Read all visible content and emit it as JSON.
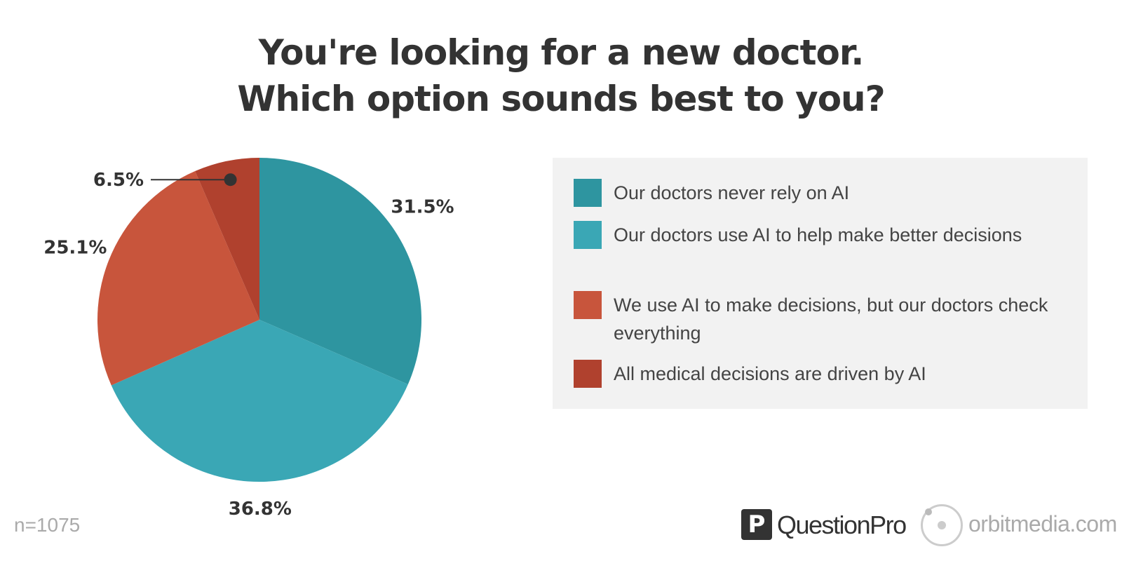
{
  "title": {
    "line1": "You're looking for a new doctor.",
    "line2": "Which option sounds best to you?"
  },
  "chart_data": {
    "type": "pie",
    "categories": [
      "Our doctors never rely on AI",
      "Our doctors use AI to help make better decisions",
      "We use AI to make decisions, but our doctors check everything",
      "All medical decisions are driven by AI"
    ],
    "values": [
      31.5,
      36.8,
      25.1,
      6.5
    ],
    "value_labels": [
      "31.5%",
      "36.8%",
      "25.1%",
      "6.5%"
    ],
    "colors": [
      "#2e95a0",
      "#3aa7b5",
      "#c8553c",
      "#b0412e"
    ],
    "start_angle_deg": 0,
    "direction": "clockwise",
    "legend_position": "right"
  },
  "footnote": "n=1075",
  "logos": {
    "questionpro_mark": "P",
    "questionpro": "QuestionPro",
    "orbitmedia": "orbitmedia.com"
  }
}
